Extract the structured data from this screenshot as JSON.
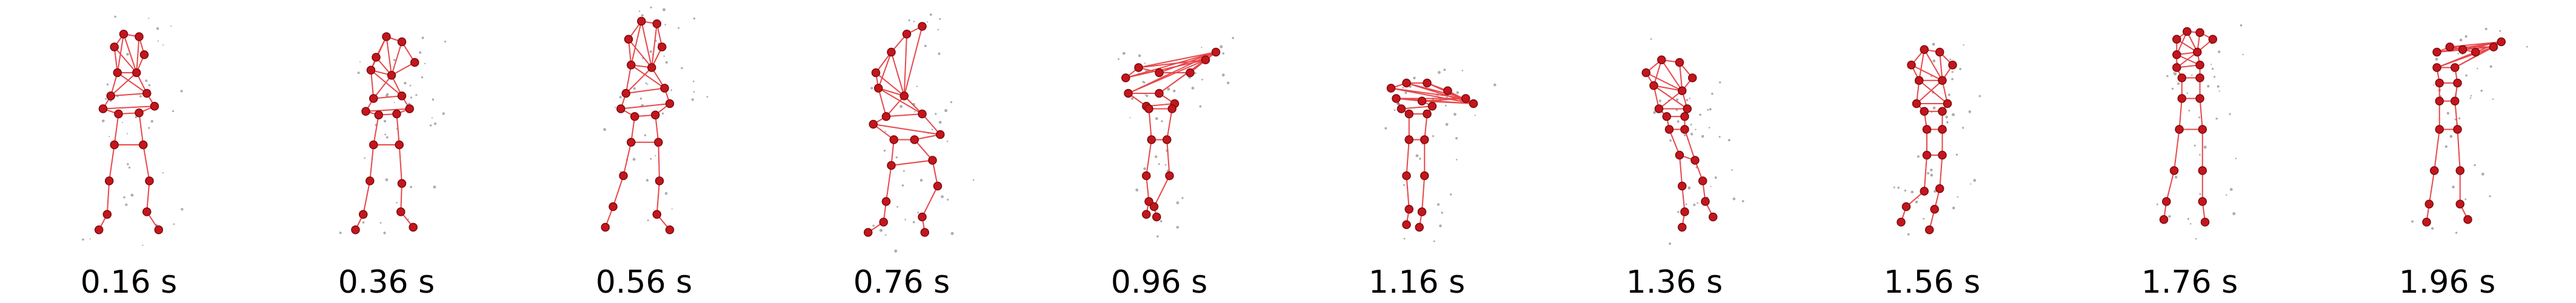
{
  "frames": [
    {
      "time": "0.16 s",
      "pose": [
        [
          -28,
          -150
        ],
        [
          -10,
          -175
        ],
        [
          20,
          -170
        ],
        [
          30,
          -135
        ],
        [
          -22,
          -100
        ],
        [
          15,
          -100
        ],
        [
          -35,
          -55
        ],
        [
          35,
          -60
        ],
        [
          -50,
          -30
        ],
        [
          50,
          -35
        ],
        [
          -20,
          -20
        ],
        [
          20,
          -22
        ],
        [
          -28,
          40
        ],
        [
          28,
          40
        ],
        [
          -38,
          110
        ],
        [
          40,
          110
        ],
        [
          -42,
          175
        ],
        [
          35,
          170
        ],
        [
          -58,
          205
        ],
        [
          58,
          205
        ]
      ]
    },
    {
      "time": "0.36 s",
      "pose": [
        [
          -20,
          -130
        ],
        [
          0,
          -170
        ],
        [
          30,
          -160
        ],
        [
          55,
          -120
        ],
        [
          -30,
          -105
        ],
        [
          10,
          -95
        ],
        [
          -25,
          -50
        ],
        [
          30,
          -55
        ],
        [
          -40,
          -25
        ],
        [
          45,
          -30
        ],
        [
          -15,
          -18
        ],
        [
          20,
          -20
        ],
        [
          -25,
          40
        ],
        [
          25,
          40
        ],
        [
          -32,
          110
        ],
        [
          30,
          115
        ],
        [
          -45,
          175
        ],
        [
          28,
          170
        ],
        [
          -60,
          205
        ],
        [
          52,
          200
        ]
      ]
    },
    {
      "time": "0.56 s",
      "pose": [
        [
          -30,
          -165
        ],
        [
          -5,
          -200
        ],
        [
          25,
          -195
        ],
        [
          35,
          -150
        ],
        [
          -25,
          -115
        ],
        [
          15,
          -110
        ],
        [
          -35,
          -60
        ],
        [
          40,
          -70
        ],
        [
          -45,
          -30
        ],
        [
          50,
          -40
        ],
        [
          -18,
          -15
        ],
        [
          22,
          -18
        ],
        [
          -25,
          35
        ],
        [
          28,
          35
        ],
        [
          -40,
          100
        ],
        [
          30,
          110
        ],
        [
          -60,
          160
        ],
        [
          25,
          175
        ],
        [
          -75,
          200
        ],
        [
          50,
          205
        ]
      ]
    },
    {
      "time": "0.76 s",
      "pose": [
        [
          -50,
          -100
        ],
        [
          -20,
          -140
        ],
        [
          10,
          -175
        ],
        [
          40,
          -190
        ],
        [
          -45,
          -70
        ],
        [
          5,
          -55
        ],
        [
          -30,
          -15
        ],
        [
          40,
          -20
        ],
        [
          -55,
          0
        ],
        [
          75,
          20
        ],
        [
          -15,
          30
        ],
        [
          25,
          30
        ],
        [
          -20,
          80
        ],
        [
          60,
          70
        ],
        [
          -30,
          150
        ],
        [
          70,
          120
        ],
        [
          -35,
          190
        ],
        [
          40,
          180
        ],
        [
          -65,
          210
        ],
        [
          45,
          210
        ]
      ]
    },
    {
      "time": "0.96 s",
      "pose": [
        [
          -65,
          -90
        ],
        [
          -40,
          -110
        ],
        [
          0,
          -100
        ],
        [
          60,
          -100
        ],
        [
          90,
          -125
        ],
        [
          110,
          -140
        ],
        [
          -60,
          -60
        ],
        [
          0,
          -60
        ],
        [
          -25,
          -35
        ],
        [
          30,
          -40
        ],
        [
          -20,
          -30
        ],
        [
          25,
          -30
        ],
        [
          -15,
          30
        ],
        [
          15,
          30
        ],
        [
          -25,
          100
        ],
        [
          20,
          100
        ],
        [
          -20,
          150
        ],
        [
          -10,
          160
        ],
        [
          -25,
          175
        ],
        [
          -5,
          180
        ]
      ]
    },
    {
      "time": "1.16 s",
      "pose": [
        [
          -50,
          -70
        ],
        [
          -20,
          -80
        ],
        [
          20,
          -80
        ],
        [
          60,
          -65
        ],
        [
          95,
          -50
        ],
        [
          110,
          -40
        ],
        [
          -40,
          -50
        ],
        [
          10,
          -45
        ],
        [
          -30,
          -30
        ],
        [
          30,
          -35
        ],
        [
          -15,
          -20
        ],
        [
          20,
          -20
        ],
        [
          -15,
          30
        ],
        [
          15,
          30
        ],
        [
          -20,
          100
        ],
        [
          15,
          100
        ],
        [
          -15,
          165
        ],
        [
          10,
          170
        ],
        [
          -20,
          195
        ],
        [
          5,
          200
        ]
      ]
    },
    {
      "time": "1.36 s",
      "pose": [
        [
          -55,
          -100
        ],
        [
          -25,
          -125
        ],
        [
          10,
          -120
        ],
        [
          35,
          -90
        ],
        [
          -40,
          -75
        ],
        [
          15,
          -65
        ],
        [
          -30,
          -30
        ],
        [
          25,
          -30
        ],
        [
          -15,
          -15
        ],
        [
          20,
          -15
        ],
        [
          -10,
          10
        ],
        [
          20,
          10
        ],
        [
          10,
          60
        ],
        [
          40,
          70
        ],
        [
          15,
          120
        ],
        [
          55,
          110
        ],
        [
          20,
          170
        ],
        [
          60,
          150
        ],
        [
          15,
          200
        ],
        [
          75,
          180
        ]
      ]
    },
    {
      "time": "1.56 s",
      "pose": [
        [
          -40,
          -115
        ],
        [
          -15,
          -145
        ],
        [
          15,
          -140
        ],
        [
          40,
          -115
        ],
        [
          -25,
          -85
        ],
        [
          20,
          -85
        ],
        [
          -30,
          -40
        ],
        [
          30,
          -40
        ],
        [
          -15,
          -25
        ],
        [
          20,
          -25
        ],
        [
          -10,
          10
        ],
        [
          20,
          10
        ],
        [
          -10,
          60
        ],
        [
          20,
          60
        ],
        [
          -15,
          130
        ],
        [
          15,
          125
        ],
        [
          -50,
          160
        ],
        [
          5,
          165
        ],
        [
          -60,
          190
        ],
        [
          -5,
          205
        ]
      ]
    },
    {
      "time": "1.76 s",
      "pose": [
        [
          -25,
          -165
        ],
        [
          -5,
          -180
        ],
        [
          20,
          -178
        ],
        [
          45,
          -165
        ],
        [
          -25,
          -135
        ],
        [
          15,
          -140
        ],
        [
          -25,
          -110
        ],
        [
          20,
          -115
        ],
        [
          -15,
          -90
        ],
        [
          20,
          -90
        ],
        [
          -15,
          -50
        ],
        [
          20,
          -50
        ],
        [
          -20,
          10
        ],
        [
          25,
          10
        ],
        [
          -30,
          90
        ],
        [
          25,
          90
        ],
        [
          -45,
          150
        ],
        [
          25,
          150
        ],
        [
          -50,
          185
        ],
        [
          30,
          190
        ]
      ]
    },
    {
      "time": "1.96 s",
      "pose": [
        [
          -20,
          -140
        ],
        [
          5,
          -150
        ],
        [
          30,
          -145
        ],
        [
          55,
          -140
        ],
        [
          90,
          -150
        ],
        [
          105,
          -160
        ],
        [
          -20,
          -110
        ],
        [
          15,
          -110
        ],
        [
          -15,
          -80
        ],
        [
          20,
          -80
        ],
        [
          -15,
          -45
        ],
        [
          15,
          -45
        ],
        [
          -15,
          10
        ],
        [
          20,
          10
        ],
        [
          -25,
          90
        ],
        [
          25,
          90
        ],
        [
          -35,
          155
        ],
        [
          25,
          155
        ],
        [
          -40,
          190
        ],
        [
          40,
          185
        ]
      ]
    }
  ]
}
